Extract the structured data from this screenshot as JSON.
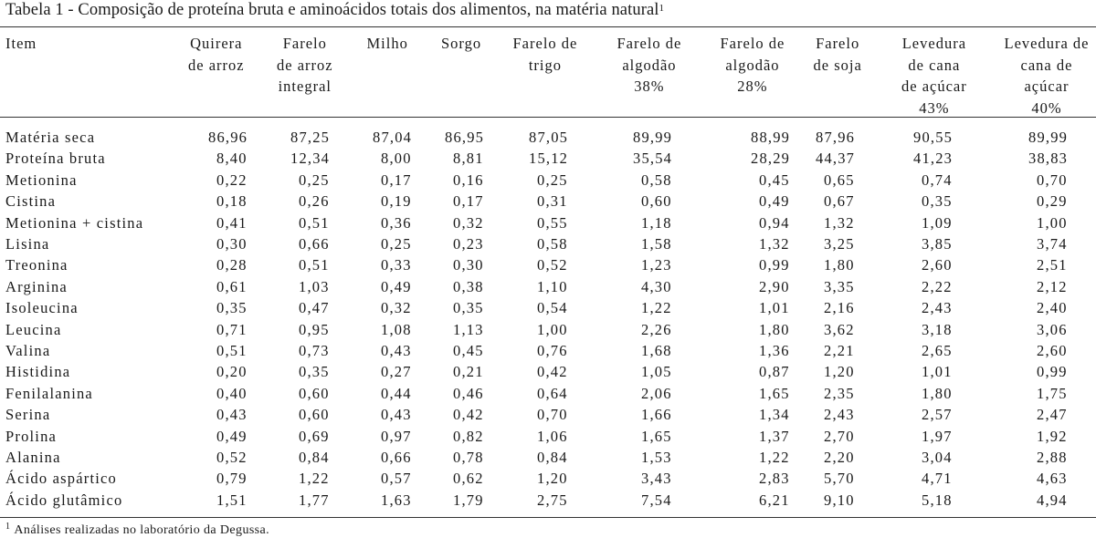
{
  "table": {
    "title": "Tabela 1 - Composição de proteína bruta e aminoácidos totais dos alimentos, na matéria natural",
    "title_sup": "1",
    "columns": [
      "Item",
      "Quirera\nde arroz",
      "Farelo\nde arroz\nintegral",
      "Milho",
      "Sorgo",
      "Farelo de\ntrigo",
      "Farelo de\nalgodão\n38%",
      "Farelo de\nalgodão\n28%",
      "Farelo\nde soja",
      "Levedura\nde cana\nde açúcar\n43%",
      "Levedura de\ncana de\naçúcar\n40%"
    ],
    "rows": [
      [
        "Matéria seca",
        "86,96",
        "87,25",
        "87,04",
        "86,95",
        "87,05",
        "89,99",
        "88,99",
        "87,96",
        "90,55",
        "89,99"
      ],
      [
        "Proteína bruta",
        "8,40",
        "12,34",
        "8,00",
        "8,81",
        "15,12",
        "35,54",
        "28,29",
        "44,37",
        "41,23",
        "38,83"
      ],
      [
        "Metionina",
        "0,22",
        "0,25",
        "0,17",
        "0,16",
        "0,25",
        "0,58",
        "0,45",
        "0,65",
        "0,74",
        "0,70"
      ],
      [
        "Cistina",
        "0,18",
        "0,26",
        "0,19",
        "0,17",
        "0,31",
        "0,60",
        "0,49",
        "0,67",
        "0,35",
        "0,29"
      ],
      [
        "Metionina + cistina",
        "0,41",
        "0,51",
        "0,36",
        "0,32",
        "0,55",
        "1,18",
        "0,94",
        "1,32",
        "1,09",
        "1,00"
      ],
      [
        "Lisina",
        "0,30",
        "0,66",
        "0,25",
        "0,23",
        "0,58",
        "1,58",
        "1,32",
        "3,25",
        "3,85",
        "3,74"
      ],
      [
        "Treonina",
        "0,28",
        "0,51",
        "0,33",
        "0,30",
        "0,52",
        "1,23",
        "0,99",
        "1,80",
        "2,60",
        "2,51"
      ],
      [
        "Arginina",
        "0,61",
        "1,03",
        "0,49",
        "0,38",
        "1,10",
        "4,30",
        "2,90",
        "3,35",
        "2,22",
        "2,12"
      ],
      [
        "Isoleucina",
        "0,35",
        "0,47",
        "0,32",
        "0,35",
        "0,54",
        "1,22",
        "1,01",
        "2,16",
        "2,43",
        "2,40"
      ],
      [
        "Leucina",
        "0,71",
        "0,95",
        "1,08",
        "1,13",
        "1,00",
        "2,26",
        "1,80",
        "3,62",
        "3,18",
        "3,06"
      ],
      [
        "Valina",
        "0,51",
        "0,73",
        "0,43",
        "0,45",
        "0,76",
        "1,68",
        "1,36",
        "2,21",
        "2,65",
        "2,60"
      ],
      [
        "Histidina",
        "0,20",
        "0,35",
        "0,27",
        "0,21",
        "0,42",
        "1,05",
        "0,87",
        "1,20",
        "1,01",
        "0,99"
      ],
      [
        "Fenilalanina",
        "0,40",
        "0,60",
        "0,44",
        "0,46",
        "0,64",
        "2,06",
        "1,65",
        "2,35",
        "1,80",
        "1,75"
      ],
      [
        "Serina",
        "0,43",
        "0,60",
        "0,43",
        "0,42",
        "0,70",
        "1,66",
        "1,34",
        "2,43",
        "2,57",
        "2,47"
      ],
      [
        "Prolina",
        "0,49",
        "0,69",
        "0,97",
        "0,82",
        "1,06",
        "1,65",
        "1,37",
        "2,70",
        "1,97",
        "1,92"
      ],
      [
        "Alanina",
        "0,52",
        "0,84",
        "0,66",
        "0,78",
        "0,84",
        "1,53",
        "1,22",
        "2,20",
        "3,04",
        "2,88"
      ],
      [
        "Ácido aspártico",
        "0,79",
        "1,22",
        "0,57",
        "0,62",
        "1,20",
        "3,43",
        "2,83",
        "5,70",
        "4,71",
        "4,63"
      ],
      [
        "Ácido glutâmico",
        "1,51",
        "1,77",
        "1,63",
        "1,79",
        "2,75",
        "7,54",
        "6,21",
        "9,10",
        "5,18",
        "4,94"
      ]
    ],
    "footnote_mark": "1",
    "footnote": "Análises realizadas no laboratório da Degussa."
  }
}
